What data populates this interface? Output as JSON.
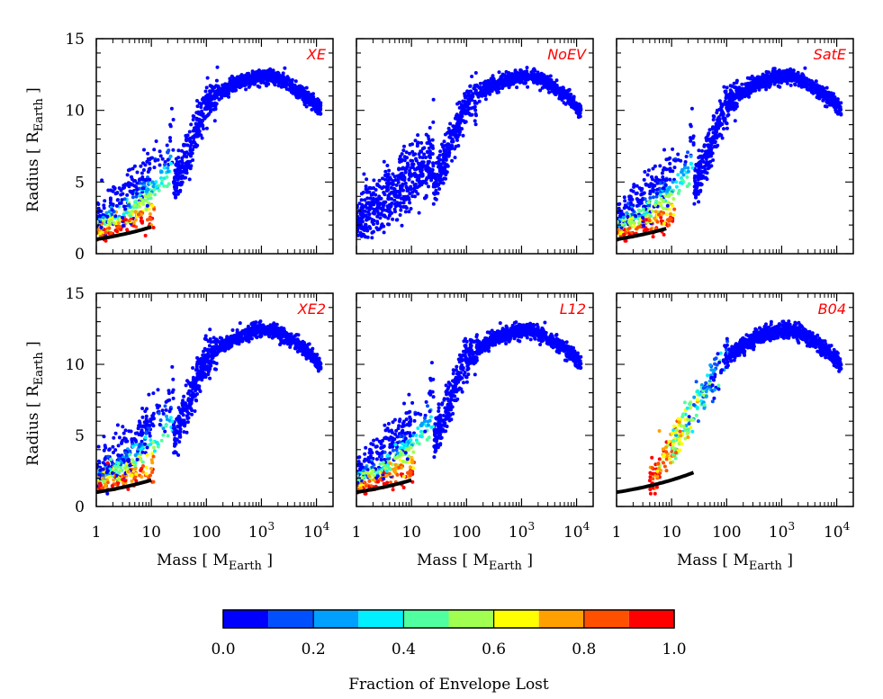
{
  "colorbar": {
    "title": "Fraction of Envelope Lost",
    "ticks": [
      {
        "value": 0.0,
        "label": "0.0"
      },
      {
        "value": 0.2,
        "label": "0.2"
      },
      {
        "value": 0.4,
        "label": "0.4"
      },
      {
        "value": 0.6,
        "label": "0.6"
      },
      {
        "value": 0.8,
        "label": "0.8"
      },
      {
        "value": 1.0,
        "label": "1.0"
      }
    ],
    "bins": [
      {
        "from": 0.0,
        "to": 0.1,
        "color": "#0000ff"
      },
      {
        "from": 0.1,
        "to": 0.2,
        "color": "#0050ff"
      },
      {
        "from": 0.2,
        "to": 0.3,
        "color": "#00a0ff"
      },
      {
        "from": 0.3,
        "to": 0.4,
        "color": "#00f0ff"
      },
      {
        "from": 0.4,
        "to": 0.5,
        "color": "#50ffa0"
      },
      {
        "from": 0.5,
        "to": 0.6,
        "color": "#a0ff50"
      },
      {
        "from": 0.6,
        "to": 0.7,
        "color": "#ffff00"
      },
      {
        "from": 0.7,
        "to": 0.8,
        "color": "#ffa000"
      },
      {
        "from": 0.8,
        "to": 0.9,
        "color": "#ff5000"
      },
      {
        "from": 0.9,
        "to": 1.0,
        "color": "#ff0000"
      }
    ]
  },
  "axis_text": {
    "ylabel_main": "Radius  [ R",
    "ylabel_sub": "Earth",
    "ylabel_end": " ]",
    "xlabel_main": "Mass  [ M",
    "xlabel_sub": "Earth",
    "xlabel_end": " ]",
    "x_tick_1": "1",
    "x_tick_10": "10",
    "x_tick_100": "100",
    "x_tick_1000_base": "10",
    "x_tick_1000_exp": "3",
    "x_tick_10000_base": "10",
    "x_tick_10000_exp": "4",
    "y_ticks": [
      "0",
      "5",
      "10",
      "15"
    ]
  },
  "chart_data": [
    {
      "type": "scatter",
      "label": "XE",
      "x_scale": "log",
      "xlim": [
        1,
        20000
      ],
      "ylim": [
        0,
        15
      ],
      "envelope_lost_max": 1.0,
      "low_mass_spread": "banded",
      "low_mass_max_mass": 25,
      "rocky_line_range": [
        1,
        10
      ],
      "features": "coloured points at M < 25, blue points above"
    },
    {
      "type": "scatter",
      "label": "NoEV",
      "x_scale": "log",
      "xlim": [
        1,
        20000
      ],
      "ylim": [
        0,
        15
      ],
      "envelope_lost_max": 0.0,
      "low_mass_spread": "wide",
      "low_mass_max_mass": 25,
      "rocky_line_range": null,
      "features": "all points blue, no rocky core line"
    },
    {
      "type": "scatter",
      "label": "SatE",
      "x_scale": "log",
      "xlim": [
        1,
        20000
      ],
      "ylim": [
        0,
        15
      ],
      "envelope_lost_max": 1.0,
      "low_mass_spread": "banded",
      "low_mass_max_mass": 25,
      "rocky_line_range": [
        1,
        8
      ]
    },
    {
      "type": "scatter",
      "label": "XE2",
      "x_scale": "log",
      "xlim": [
        1,
        20000
      ],
      "ylim": [
        0,
        15
      ],
      "envelope_lost_max": 1.0,
      "low_mass_spread": "banded",
      "low_mass_max_mass": 25,
      "rocky_line_range": [
        1,
        10
      ]
    },
    {
      "type": "scatter",
      "label": "L12",
      "x_scale": "log",
      "xlim": [
        1,
        20000
      ],
      "ylim": [
        0,
        15
      ],
      "envelope_lost_max": 1.0,
      "low_mass_spread": "banded",
      "low_mass_max_mass": 25,
      "rocky_line_range": [
        1,
        10
      ]
    },
    {
      "type": "scatter",
      "label": "B04",
      "x_scale": "log",
      "xlim": [
        1,
        20000
      ],
      "ylim": [
        0,
        15
      ],
      "envelope_lost_max": 1.0,
      "low_mass_spread": "narrow",
      "low_mass_max_mass": 110,
      "low_mass_min_mass": 4,
      "rocky_line_range": [
        1,
        25
      ]
    }
  ]
}
